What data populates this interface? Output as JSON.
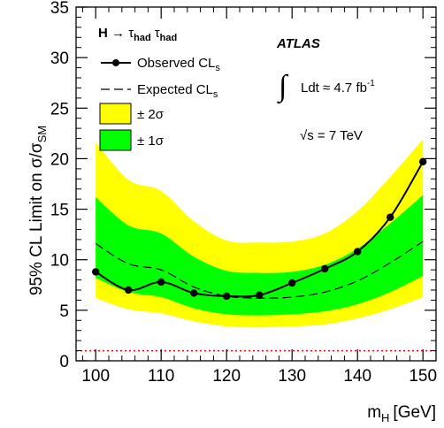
{
  "chart_data": {
    "type": "line",
    "xlabel": "m",
    "xlabel_sub": "H",
    "xlabel_unit": "[GeV]",
    "ylabel": "95% CL Limit on σ/σ",
    "ylabel_sub": "SM",
    "xlim": [
      97,
      152
    ],
    "ylim": [
      0,
      35
    ],
    "x_ticks": [
      100,
      110,
      120,
      130,
      140,
      150
    ],
    "y_ticks": [
      0,
      5,
      10,
      15,
      20,
      25,
      30,
      35
    ],
    "grid": false,
    "legend_position": "top-left",
    "legend": {
      "title_main": "H",
      "title_arrow": " → ",
      "title_tau": "τ",
      "title_sub": "had",
      "observed": "Observed CL",
      "observed_sub": "s",
      "expected": "Expected CL",
      "expected_sub": "s",
      "band2": "± 2σ",
      "band1": "± 1σ"
    },
    "annotations": {
      "experiment": "ATLAS",
      "integral_sign": "∫",
      "lumi": "Ldt ≈ 4.7 fb",
      "lumi_sup": "-1",
      "energy": "√s = 7 TeV"
    },
    "colors": {
      "band2": "#ffff00",
      "band1": "#00ff00",
      "observed": "#000000",
      "expected": "#000000",
      "reference": "#ff0000"
    },
    "x": [
      100,
      105,
      110,
      115,
      120,
      125,
      130,
      135,
      140,
      145,
      150
    ],
    "series": [
      {
        "name": "Observed CLs",
        "style": "solid-markers",
        "values": [
          8.8,
          7.0,
          7.8,
          6.7,
          6.4,
          6.5,
          7.7,
          9.1,
          10.8,
          14.2,
          19.7
        ]
      },
      {
        "name": "Expected CLs",
        "style": "dashed",
        "values": [
          11.6,
          9.6,
          9.0,
          7.3,
          6.4,
          6.2,
          6.3,
          6.8,
          7.9,
          9.7,
          11.8
        ]
      }
    ],
    "band_1sigma": {
      "low": [
        8.2,
        6.8,
        6.3,
        5.2,
        4.6,
        4.5,
        4.6,
        4.9,
        5.6,
        6.8,
        8.4
      ],
      "high": [
        16.2,
        13.4,
        12.6,
        10.3,
        8.9,
        8.7,
        8.8,
        9.5,
        11.1,
        13.6,
        16.4
      ]
    },
    "band_2sigma": {
      "low": [
        6.2,
        5.1,
        4.7,
        3.9,
        3.4,
        3.3,
        3.4,
        3.6,
        4.2,
        5.1,
        6.3
      ],
      "high": [
        21.6,
        17.9,
        16.8,
        13.8,
        11.9,
        11.7,
        11.8,
        12.6,
        14.8,
        18.2,
        21.9
      ]
    },
    "reference_line": 1.0
  }
}
